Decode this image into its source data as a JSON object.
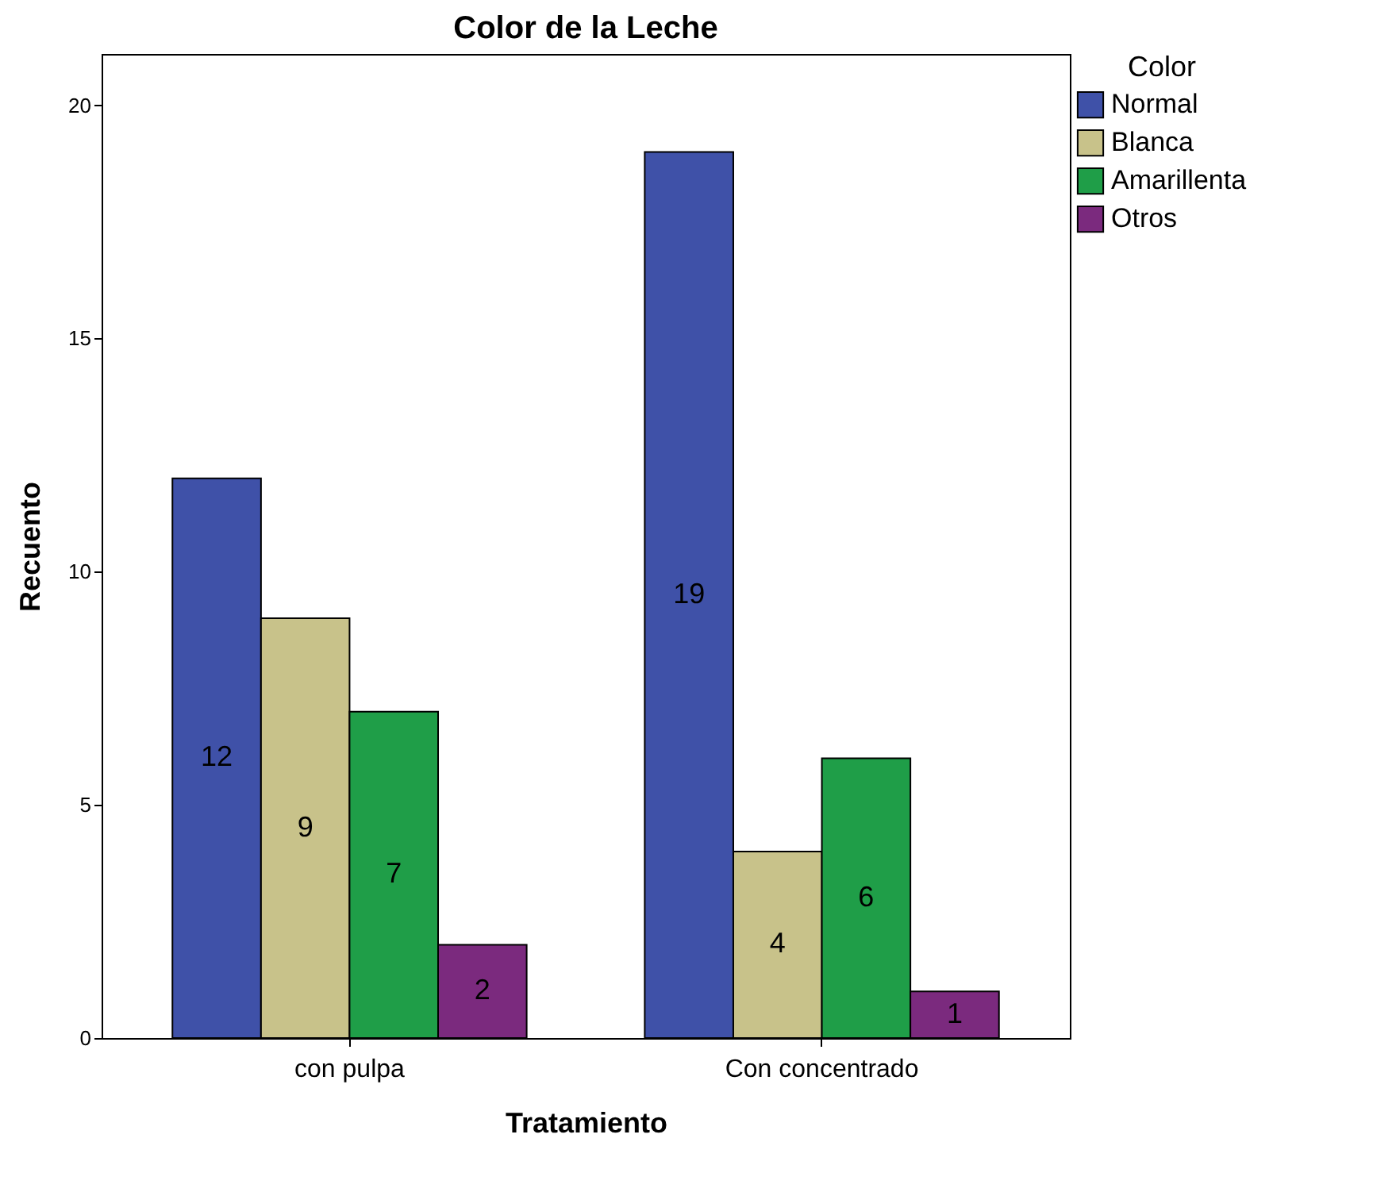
{
  "chart_data": {
    "type": "bar",
    "title": "Color de la Leche",
    "xlabel": "Tratamiento",
    "ylabel": "Recuento",
    "legend_title": "Color",
    "categories": [
      "con pulpa",
      "Con concentrado"
    ],
    "series": [
      {
        "name": "Normal",
        "color": "#3f51a8",
        "values": [
          12,
          19
        ]
      },
      {
        "name": "Blanca",
        "color": "#c8c28a",
        "values": [
          9,
          4
        ]
      },
      {
        "name": "Amarillenta",
        "color": "#1f9e48",
        "values": [
          7,
          6
        ]
      },
      {
        "name": "Otros",
        "color": "#7b2a7e",
        "values": [
          2,
          1
        ]
      }
    ],
    "ylim": [
      0,
      21.1
    ],
    "yticks": [
      0,
      5,
      10,
      15,
      20
    ],
    "grid": false,
    "legend": "top right",
    "data_labels": true
  }
}
